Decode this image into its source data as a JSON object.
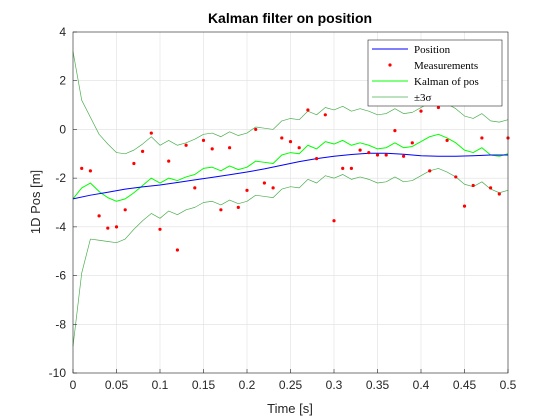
{
  "chart_data": {
    "type": "line",
    "title": "Kalman filter on position",
    "xlabel": "Time [s]",
    "ylabel": "1D Pos [m]",
    "xlim": [
      0,
      0.5
    ],
    "ylim": [
      -10,
      4
    ],
    "xticks": [
      0,
      0.05,
      0.1,
      0.15,
      0.2,
      0.25,
      0.3,
      0.35,
      0.4,
      0.45,
      0.5
    ],
    "xtick_labels": [
      "0",
      "0.05",
      "0.1",
      "0.15",
      "0.2",
      "0.25",
      "0.3",
      "0.35",
      "0.4",
      "0.45",
      "0.5"
    ],
    "yticks": [
      -10,
      -8,
      -6,
      -4,
      -2,
      0,
      2,
      4
    ],
    "ytick_labels": [
      "-10",
      "-8",
      "-6",
      "-4",
      "-2",
      "0",
      "2",
      "4"
    ],
    "grid": true,
    "legend_position": "top-right",
    "colors": {
      "position": "#0000ff",
      "measurements": "#ff0000",
      "kalman": "#00ff00",
      "sigma": "#4caf50",
      "axis": "#262626",
      "grid": "#dfdfdf"
    },
    "series": [
      {
        "name": "Position",
        "kind": "line",
        "x": [
          0,
          0.02,
          0.04,
          0.06,
          0.08,
          0.1,
          0.12,
          0.14,
          0.16,
          0.18,
          0.2,
          0.22,
          0.24,
          0.26,
          0.28,
          0.3,
          0.32,
          0.34,
          0.36,
          0.38,
          0.4,
          0.42,
          0.44,
          0.46,
          0.48,
          0.5
        ],
        "y": [
          -2.85,
          -2.7,
          -2.58,
          -2.45,
          -2.36,
          -2.28,
          -2.18,
          -2.07,
          -1.97,
          -1.86,
          -1.75,
          -1.62,
          -1.47,
          -1.32,
          -1.2,
          -1.1,
          -1.03,
          -0.98,
          -0.98,
          -1.02,
          -1.08,
          -1.1,
          -1.1,
          -1.08,
          -1.05,
          -1.05
        ]
      },
      {
        "name": "Measurements",
        "kind": "scatter",
        "x": [
          0.01,
          0.02,
          0.03,
          0.04,
          0.05,
          0.06,
          0.07,
          0.08,
          0.09,
          0.1,
          0.11,
          0.12,
          0.13,
          0.14,
          0.15,
          0.16,
          0.17,
          0.18,
          0.19,
          0.2,
          0.21,
          0.22,
          0.23,
          0.24,
          0.25,
          0.26,
          0.27,
          0.28,
          0.29,
          0.3,
          0.31,
          0.32,
          0.33,
          0.34,
          0.35,
          0.36,
          0.37,
          0.38,
          0.39,
          0.4,
          0.41,
          0.42,
          0.43,
          0.44,
          0.45,
          0.46,
          0.47,
          0.48,
          0.49,
          0.5
        ],
        "y": [
          -1.6,
          -1.7,
          -3.55,
          -4.05,
          -4.0,
          -3.3,
          -1.4,
          -0.9,
          -0.15,
          -4.1,
          -1.3,
          -4.95,
          -0.65,
          -2.4,
          -0.45,
          -0.8,
          -3.3,
          -0.75,
          -3.2,
          -2.5,
          0.0,
          -2.2,
          -2.4,
          -0.35,
          -0.5,
          -0.75,
          0.8,
          -1.2,
          0.6,
          -3.75,
          -1.6,
          -1.6,
          -0.85,
          -0.95,
          -1.05,
          -1.05,
          -0.05,
          -1.1,
          -0.55,
          0.75,
          -1.7,
          0.9,
          -0.45,
          -1.95,
          -3.15,
          -2.3,
          -0.35,
          -2.4,
          -2.65,
          -0.35
        ]
      },
      {
        "name": "Kalman of pos",
        "kind": "line",
        "x": [
          0,
          0.01,
          0.02,
          0.03,
          0.04,
          0.05,
          0.06,
          0.07,
          0.08,
          0.09,
          0.1,
          0.11,
          0.12,
          0.13,
          0.14,
          0.15,
          0.16,
          0.17,
          0.18,
          0.19,
          0.2,
          0.21,
          0.22,
          0.23,
          0.24,
          0.25,
          0.26,
          0.27,
          0.28,
          0.29,
          0.3,
          0.31,
          0.32,
          0.33,
          0.34,
          0.35,
          0.36,
          0.37,
          0.38,
          0.39,
          0.4,
          0.41,
          0.42,
          0.43,
          0.44,
          0.45,
          0.46,
          0.47,
          0.48,
          0.49,
          0.5
        ],
        "y": [
          -2.85,
          -2.4,
          -2.2,
          -2.55,
          -2.8,
          -2.95,
          -2.85,
          -2.6,
          -2.3,
          -2.0,
          -2.2,
          -2.0,
          -2.1,
          -1.95,
          -1.85,
          -1.6,
          -1.55,
          -1.7,
          -1.5,
          -1.65,
          -1.55,
          -1.3,
          -1.35,
          -1.4,
          -1.05,
          -0.95,
          -1.0,
          -0.65,
          -0.8,
          -0.5,
          -0.6,
          -0.45,
          -0.65,
          -0.55,
          -0.65,
          -0.8,
          -0.75,
          -0.55,
          -0.75,
          -0.7,
          -0.5,
          -0.3,
          -0.2,
          -0.35,
          -0.55,
          -0.85,
          -0.95,
          -0.75,
          -1.05,
          -1.1,
          -1.0
        ]
      },
      {
        "name": "±3σ",
        "kind": "line",
        "x": [
          0,
          0.01,
          0.02,
          0.03,
          0.04,
          0.05,
          0.06,
          0.07,
          0.08,
          0.09,
          0.1,
          0.11,
          0.12,
          0.13,
          0.14,
          0.15,
          0.16,
          0.17,
          0.18,
          0.19,
          0.2,
          0.21,
          0.22,
          0.23,
          0.24,
          0.25,
          0.26,
          0.27,
          0.28,
          0.29,
          0.3,
          0.31,
          0.32,
          0.33,
          0.34,
          0.35,
          0.36,
          0.37,
          0.38,
          0.39,
          0.4,
          0.41,
          0.42,
          0.43,
          0.44,
          0.45,
          0.46,
          0.47,
          0.48,
          0.49,
          0.5
        ],
        "y": [
          3.2,
          1.2,
          0.5,
          -0.2,
          -0.6,
          -0.95,
          -1.0,
          -0.85,
          -0.6,
          -0.3,
          -0.65,
          -0.45,
          -0.65,
          -0.55,
          -0.4,
          -0.2,
          -0.15,
          -0.3,
          -0.1,
          -0.25,
          -0.15,
          0.1,
          0.05,
          0.0,
          0.35,
          0.45,
          0.4,
          0.75,
          0.6,
          0.9,
          0.8,
          0.95,
          0.75,
          0.85,
          0.75,
          0.6,
          0.65,
          0.85,
          0.65,
          0.7,
          0.9,
          1.1,
          1.2,
          1.05,
          0.85,
          0.55,
          0.45,
          0.65,
          0.35,
          0.3,
          0.4
        ]
      },
      {
        "kind": "line",
        "x": [
          0,
          0.01,
          0.02,
          0.03,
          0.04,
          0.05,
          0.06,
          0.07,
          0.08,
          0.09,
          0.1,
          0.11,
          0.12,
          0.13,
          0.14,
          0.15,
          0.16,
          0.17,
          0.18,
          0.19,
          0.2,
          0.21,
          0.22,
          0.23,
          0.24,
          0.25,
          0.26,
          0.27,
          0.28,
          0.29,
          0.3,
          0.31,
          0.32,
          0.33,
          0.34,
          0.35,
          0.36,
          0.37,
          0.38,
          0.39,
          0.4,
          0.41,
          0.42,
          0.43,
          0.44,
          0.45,
          0.46,
          0.47,
          0.48,
          0.49,
          0.5
        ],
        "y": [
          -8.9,
          -5.9,
          -4.5,
          -4.55,
          -4.6,
          -4.65,
          -4.5,
          -4.1,
          -3.75,
          -3.45,
          -3.65,
          -3.35,
          -3.5,
          -3.3,
          -3.2,
          -3.0,
          -2.95,
          -3.1,
          -2.9,
          -3.05,
          -2.95,
          -2.7,
          -2.75,
          -2.8,
          -2.45,
          -2.35,
          -2.4,
          -2.05,
          -2.2,
          -1.9,
          -2.0,
          -1.85,
          -2.05,
          -1.95,
          -2.05,
          -2.2,
          -2.15,
          -1.95,
          -2.15,
          -2.1,
          -1.9,
          -1.7,
          -1.6,
          -1.75,
          -1.95,
          -2.25,
          -2.35,
          -2.15,
          -2.45,
          -2.6,
          -2.5
        ]
      }
    ]
  }
}
